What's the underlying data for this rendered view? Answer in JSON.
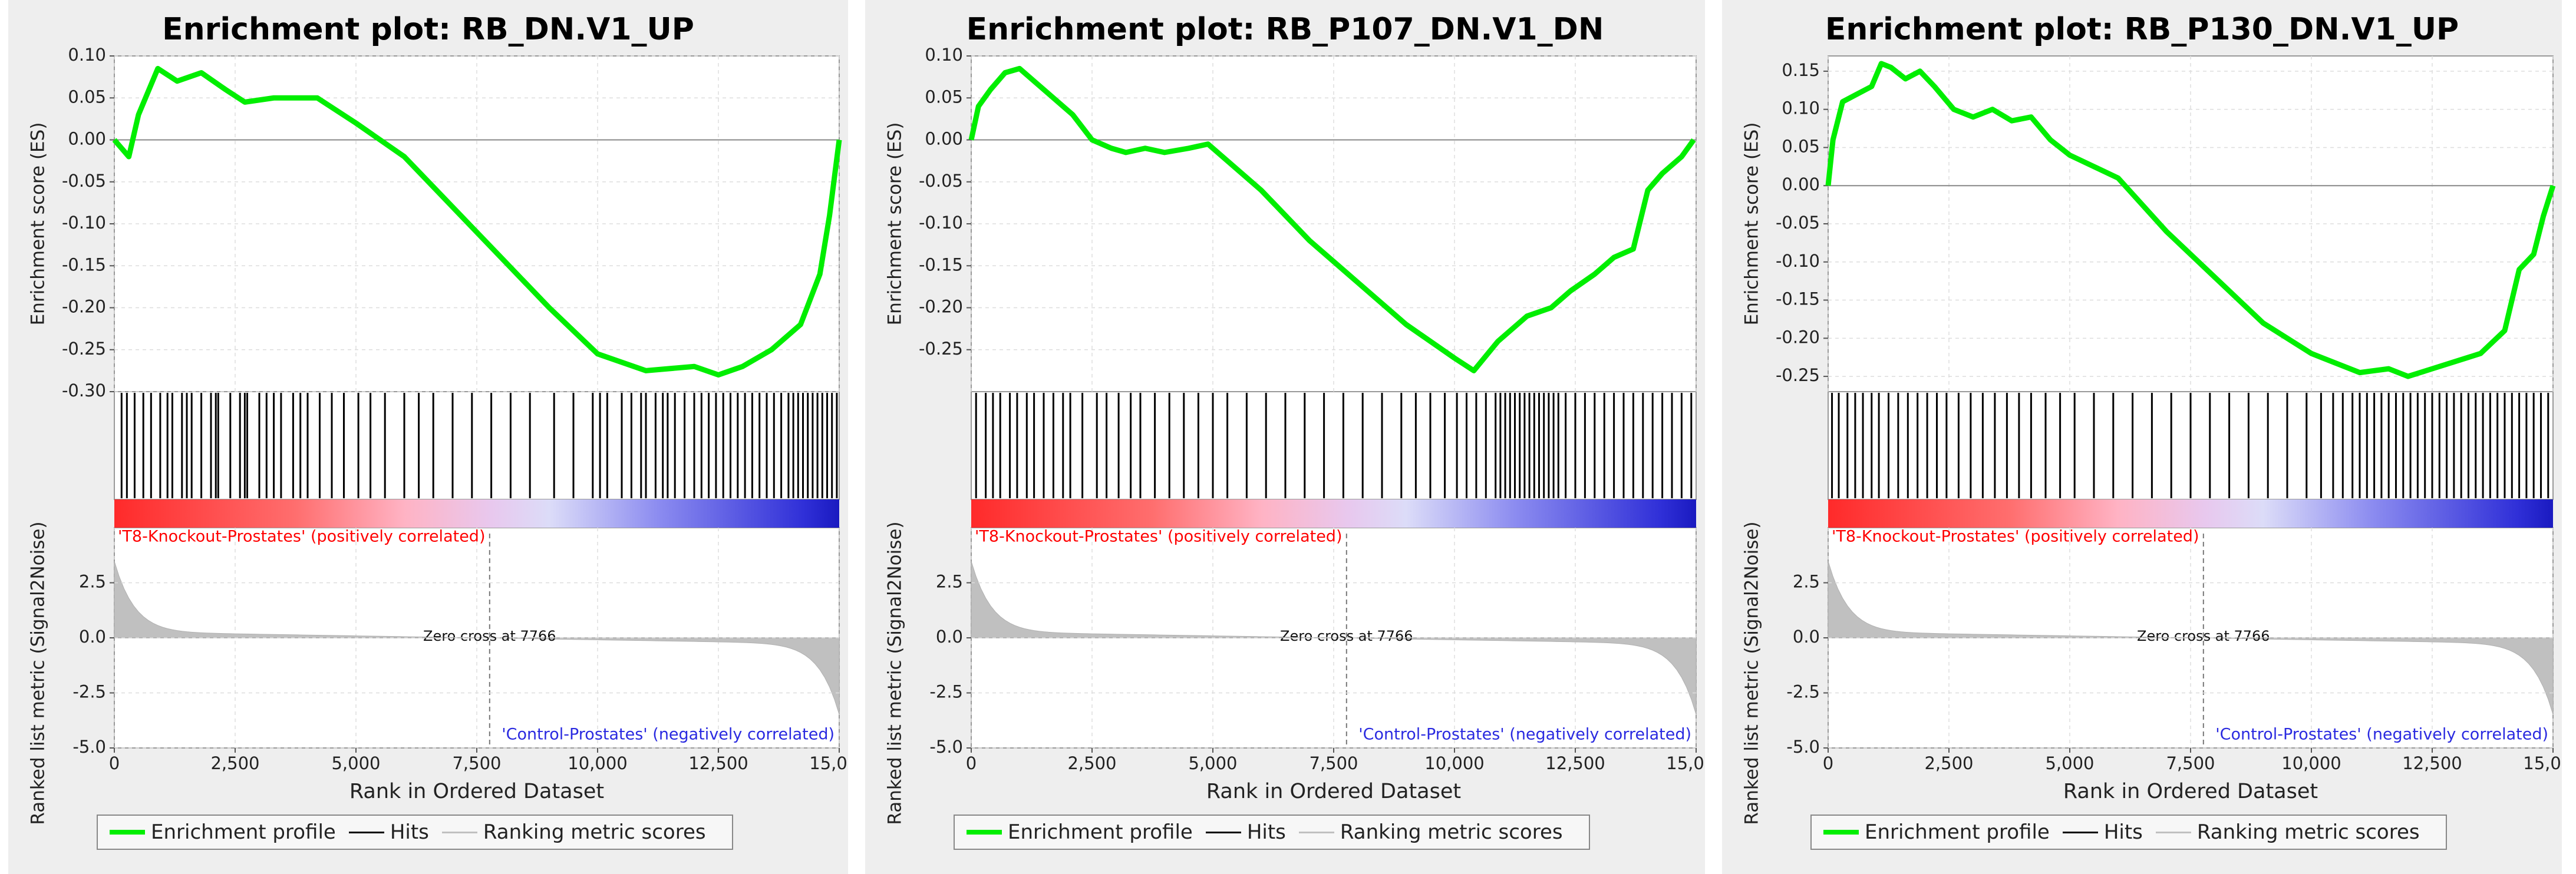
{
  "chart_data": [
    {
      "type": "line",
      "title": "Enrichment plot: RB_DN.V1_UP",
      "es_ylabel": "Enrichment score (ES)",
      "es_ylim": [
        -0.3,
        0.1
      ],
      "es_yticks": [
        0.1,
        0.05,
        0.0,
        -0.05,
        -0.1,
        -0.15,
        -0.2,
        -0.25,
        -0.3
      ],
      "es_ytick_labels": [
        "0.10",
        "0.05",
        "0.00",
        "-0.05",
        "-0.10",
        "-0.15",
        "-0.20",
        "-0.25",
        "-0.30"
      ],
      "es_curve": {
        "x": [
          0,
          300,
          500,
          900,
          1300,
          1800,
          2300,
          2700,
          3300,
          4200,
          5000,
          6000,
          7000,
          8000,
          9000,
          10000,
          11000,
          12000,
          12500,
          13000,
          13600,
          14200,
          14600,
          14800,
          15000
        ],
        "y": [
          0.0,
          -0.02,
          0.03,
          0.085,
          0.07,
          0.08,
          0.06,
          0.045,
          0.05,
          0.05,
          0.02,
          -0.02,
          -0.08,
          -0.14,
          -0.2,
          -0.255,
          -0.275,
          -0.27,
          -0.28,
          -0.27,
          -0.25,
          -0.22,
          -0.16,
          -0.09,
          0.0
        ]
      },
      "hits": [
        150,
        260,
        420,
        600,
        760,
        950,
        1100,
        1200,
        1400,
        1500,
        1600,
        1800,
        2000,
        2100,
        2150,
        2400,
        2600,
        2700,
        2750,
        3000,
        3150,
        3300,
        3450,
        3700,
        3850,
        4000,
        4250,
        4500,
        4750,
        5050,
        5300,
        5600,
        6000,
        6300,
        6600,
        7000,
        7400,
        7800,
        8200,
        8600,
        9100,
        9500,
        9900,
        10050,
        10200,
        10500,
        10700,
        10900,
        11000,
        11200,
        11350,
        11450,
        11600,
        11800,
        12000,
        12150,
        12300,
        12450,
        12600,
        12750,
        12900,
        13050,
        13200,
        13350,
        13500,
        13650,
        13800,
        13950,
        14050,
        14150,
        14250,
        14350,
        14450,
        14550,
        14650,
        14750,
        14850,
        14950
      ],
      "label_pos": "'T8-Knockout-Prostates' (positively correlated)",
      "label_neg": "'Control-Prostates' (negatively correlated)",
      "zero_cross_label": "Zero cross at 7766",
      "zero_cross": 7766,
      "rank_ylabel": "Ranked list metric (Signal2Noise)",
      "rank_ylim": [
        -5.0,
        5.0
      ],
      "rank_yticks": [
        2.5,
        0.0,
        -2.5,
        -5.0
      ],
      "rank_ytick_labels": [
        "2.5",
        "0.0",
        "-2.5",
        "-5.0"
      ],
      "xlabel": "Rank in Ordered Dataset",
      "xlim": [
        0,
        15000
      ],
      "xticks": [
        0,
        2500,
        5000,
        7500,
        10000,
        12500,
        15000
      ],
      "xtick_labels": [
        "0",
        "2,500",
        "5,000",
        "7,500",
        "10,000",
        "12,500",
        "15,000"
      ],
      "series": [
        {
          "name": "Enrichment profile",
          "color": "#00ee00"
        },
        {
          "name": "Hits",
          "color": "#000000"
        },
        {
          "name": "Ranking metric scores",
          "color": "#c0c0c0"
        }
      ]
    },
    {
      "type": "line",
      "title": "Enrichment plot: RB_P107_DN.V1_DN",
      "es_ylabel": "Enrichment score (ES)",
      "es_ylim": [
        -0.3,
        0.1
      ],
      "es_yticks": [
        0.1,
        0.05,
        0.0,
        -0.05,
        -0.1,
        -0.15,
        -0.2,
        -0.25
      ],
      "es_ytick_labels": [
        "0.10",
        "0.05",
        "0.00",
        "-0.05",
        "-0.10",
        "-0.15",
        "-0.20",
        "-0.25"
      ],
      "es_curve": {
        "x": [
          0,
          150,
          400,
          700,
          1000,
          1300,
          1700,
          2100,
          2500,
          2900,
          3200,
          3600,
          4000,
          4500,
          4900,
          5200,
          5600,
          6000,
          7000,
          8000,
          9000,
          10000,
          10400,
          10900,
          11500,
          12000,
          12400,
          12900,
          13300,
          13700,
          14000,
          14300,
          14700,
          14950
        ],
        "y": [
          0.0,
          0.04,
          0.06,
          0.08,
          0.085,
          0.07,
          0.05,
          0.03,
          0.0,
          -0.01,
          -0.015,
          -0.01,
          -0.015,
          -0.01,
          -0.005,
          -0.02,
          -0.04,
          -0.06,
          -0.12,
          -0.17,
          -0.22,
          -0.26,
          -0.275,
          -0.24,
          -0.21,
          -0.2,
          -0.18,
          -0.16,
          -0.14,
          -0.13,
          -0.06,
          -0.04,
          -0.02,
          0.0
        ]
      },
      "hits": [
        100,
        300,
        450,
        600,
        800,
        950,
        1150,
        1300,
        1500,
        1700,
        1900,
        2050,
        2300,
        2600,
        2800,
        3050,
        3300,
        3500,
        3800,
        4100,
        4400,
        4700,
        5000,
        5300,
        5700,
        6100,
        6500,
        6900,
        7300,
        7700,
        8100,
        8500,
        8900,
        9200,
        9500,
        9800,
        10050,
        10250,
        10450,
        10650,
        10850,
        10950,
        11050,
        11150,
        11250,
        11350,
        11450,
        11550,
        11650,
        11750,
        11850,
        11950,
        12050,
        12150,
        12300,
        12500,
        12700,
        12900,
        13100,
        13300,
        13500,
        13700,
        13900,
        14100,
        14300,
        14500,
        14700,
        14900
      ],
      "label_pos": "'T8-Knockout-Prostates' (positively correlated)",
      "label_neg": "'Control-Prostates' (negatively correlated)",
      "zero_cross_label": "Zero cross at 7766",
      "zero_cross": 7766,
      "rank_ylabel": "Ranked list metric (Signal2Noise)",
      "rank_ylim": [
        -5.0,
        5.0
      ],
      "rank_yticks": [
        2.5,
        0.0,
        -2.5,
        -5.0
      ],
      "rank_ytick_labels": [
        "2.5",
        "0.0",
        "-2.5",
        "-5.0"
      ],
      "xlabel": "Rank in Ordered Dataset",
      "xlim": [
        0,
        15000
      ],
      "xticks": [
        0,
        2500,
        5000,
        7500,
        10000,
        12500,
        15000
      ],
      "xtick_labels": [
        "0",
        "2,500",
        "5,000",
        "7,500",
        "10,000",
        "12,500",
        "15,000"
      ],
      "series": [
        {
          "name": "Enrichment profile",
          "color": "#00ee00"
        },
        {
          "name": "Hits",
          "color": "#000000"
        },
        {
          "name": "Ranking metric scores",
          "color": "#c0c0c0"
        }
      ]
    },
    {
      "type": "line",
      "title": "Enrichment plot: RB_P130_DN.V1_UP",
      "es_ylabel": "Enrichment score (ES)",
      "es_ylim": [
        -0.27,
        0.17
      ],
      "es_yticks": [
        0.15,
        0.1,
        0.05,
        0.0,
        -0.05,
        -0.1,
        -0.15,
        -0.2,
        -0.25
      ],
      "es_ytick_labels": [
        "0.15",
        "0.10",
        "0.05",
        "0.00",
        "-0.05",
        "-0.10",
        "-0.15",
        "-0.20",
        "-0.25"
      ],
      "es_curve": {
        "x": [
          0,
          100,
          300,
          600,
          900,
          1100,
          1300,
          1600,
          1900,
          2200,
          2600,
          3000,
          3400,
          3800,
          4200,
          4600,
          5000,
          6000,
          7000,
          8000,
          9000,
          10000,
          11000,
          11600,
          12000,
          12500,
          13000,
          13500,
          14000,
          14300,
          14600,
          14800,
          15000
        ],
        "y": [
          0.0,
          0.06,
          0.11,
          0.12,
          0.13,
          0.16,
          0.155,
          0.14,
          0.15,
          0.13,
          0.1,
          0.09,
          0.1,
          0.085,
          0.09,
          0.06,
          0.04,
          0.01,
          -0.06,
          -0.12,
          -0.18,
          -0.22,
          -0.245,
          -0.24,
          -0.25,
          -0.24,
          -0.23,
          -0.22,
          -0.19,
          -0.11,
          -0.09,
          -0.04,
          0.0
        ]
      },
      "hits": [
        80,
        220,
        400,
        560,
        720,
        900,
        1050,
        1250,
        1450,
        1650,
        1850,
        2050,
        2250,
        2450,
        2700,
        2950,
        3200,
        3450,
        3700,
        3950,
        4200,
        4500,
        4800,
        5100,
        5500,
        5900,
        6300,
        6700,
        7100,
        7500,
        7900,
        8300,
        8700,
        9100,
        9500,
        9900,
        10200,
        10450,
        10650,
        10850,
        11000,
        11150,
        11300,
        11450,
        11600,
        11750,
        11900,
        12050,
        12200,
        12350,
        12500,
        12650,
        12800,
        12950,
        13100,
        13250,
        13400,
        13550,
        13700,
        13850,
        14000,
        14150,
        14300,
        14450,
        14600,
        14750,
        14900
      ],
      "label_pos": "'T8-Knockout-Prostates' (positively correlated)",
      "label_neg": "'Control-Prostates' (negatively correlated)",
      "zero_cross_label": "Zero cross at 7766",
      "zero_cross": 7766,
      "rank_ylabel": "Ranked list metric (Signal2Noise)",
      "rank_ylim": [
        -5.0,
        5.0
      ],
      "rank_yticks": [
        2.5,
        0.0,
        -2.5,
        -5.0
      ],
      "rank_ytick_labels": [
        "2.5",
        "0.0",
        "-2.5",
        "-5.0"
      ],
      "xlabel": "Rank in Ordered Dataset",
      "xlim": [
        0,
        15000
      ],
      "xticks": [
        0,
        2500,
        5000,
        7500,
        10000,
        12500,
        15000
      ],
      "xtick_labels": [
        "0",
        "2,500",
        "5,000",
        "7,500",
        "10,000",
        "12,500",
        "15,000"
      ],
      "series": [
        {
          "name": "Enrichment profile",
          "color": "#00ee00"
        },
        {
          "name": "Hits",
          "color": "#000000"
        },
        {
          "name": "Ranking metric scores",
          "color": "#c0c0c0"
        }
      ]
    }
  ]
}
